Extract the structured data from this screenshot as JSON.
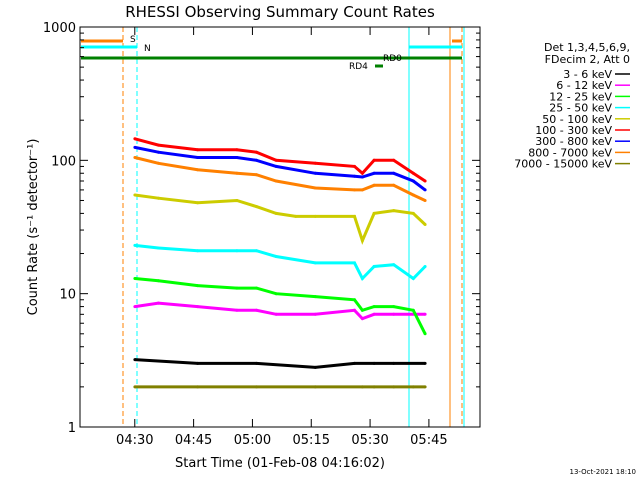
{
  "chart_data": {
    "type": "line",
    "title": "RHESSI Observing Summary Count Rates",
    "xlabel": "Start Time (01-Feb-08 04:16:02)",
    "ylabel": "Count Rate (s⁻¹ detector⁻¹)",
    "y_scale": "log",
    "ylim": [
      1,
      1000
    ],
    "xlim_minutes": [
      0,
      102
    ],
    "x_ticks": [
      "04:30",
      "04:45",
      "05:00",
      "05:15",
      "05:30",
      "05:45"
    ],
    "x_tick_minutes": [
      13.97,
      28.97,
      43.97,
      58.97,
      73.97,
      88.97
    ],
    "y_ticks": [
      "1",
      "10",
      "100",
      "1000"
    ],
    "y_tick_values": [
      1,
      10,
      100,
      1000
    ],
    "legend_header": [
      "Det 1,3,4,5,6,9,",
      "FDecim 2, Att 0"
    ],
    "legend_position": "right",
    "series": [
      {
        "name": "3 - 6 keV",
        "color": "#000000",
        "x": [
          14,
          30,
          45,
          60,
          70,
          75,
          80,
          88
        ],
        "values": [
          3.2,
          3.0,
          3.0,
          2.8,
          3.0,
          3.0,
          3.0,
          3.0
        ]
      },
      {
        "name": "6 - 12 keV",
        "color": "#ff00ff",
        "x": [
          14,
          20,
          30,
          40,
          45,
          50,
          60,
          70,
          72,
          75,
          80,
          88
        ],
        "values": [
          8.0,
          8.5,
          8.0,
          7.5,
          7.5,
          7.0,
          7.0,
          7.5,
          6.5,
          7.0,
          7.0,
          7.0
        ]
      },
      {
        "name": "12 - 25 keV",
        "color": "#00ff00",
        "x": [
          14,
          20,
          30,
          40,
          45,
          50,
          60,
          70,
          72,
          75,
          80,
          85,
          88
        ],
        "values": [
          13.0,
          12.5,
          11.5,
          11.0,
          11.0,
          10.0,
          9.5,
          9.0,
          7.5,
          8.0,
          8.0,
          7.5,
          5.0
        ]
      },
      {
        "name": "25 - 50 keV",
        "color": "#00ffff",
        "x": [
          14,
          20,
          30,
          40,
          45,
          50,
          60,
          70,
          72,
          75,
          80,
          85,
          88
        ],
        "values": [
          23.0,
          22.0,
          21.0,
          21.0,
          21.0,
          19.0,
          17.0,
          17.0,
          13.0,
          16.0,
          16.5,
          13.0,
          16.0
        ]
      },
      {
        "name": "50 - 100 keV",
        "color": "#cccc00",
        "x": [
          14,
          20,
          30,
          40,
          45,
          50,
          55,
          60,
          70,
          72,
          75,
          80,
          85,
          88
        ],
        "values": [
          55,
          52,
          48,
          50,
          45,
          40,
          38,
          38,
          38,
          25,
          40,
          42,
          40,
          33
        ]
      },
      {
        "name": "100 - 300 keV",
        "color": "#ff0000",
        "x": [
          14,
          20,
          30,
          40,
          45,
          50,
          60,
          70,
          72,
          75,
          80,
          85,
          88
        ],
        "values": [
          145,
          130,
          120,
          120,
          115,
          100,
          95,
          90,
          80,
          100,
          100,
          80,
          70
        ]
      },
      {
        "name": "300 - 800 keV",
        "color": "#0000ff",
        "x": [
          14,
          20,
          30,
          40,
          45,
          50,
          60,
          70,
          72,
          75,
          80,
          85,
          88
        ],
        "values": [
          125,
          115,
          105,
          105,
          100,
          90,
          80,
          76,
          75,
          80,
          80,
          70,
          60
        ]
      },
      {
        "name": "800 - 7000 keV",
        "color": "#ff8000",
        "x": [
          14,
          20,
          30,
          40,
          45,
          50,
          60,
          70,
          72,
          75,
          80,
          85,
          88
        ],
        "values": [
          105,
          95,
          85,
          80,
          78,
          70,
          62,
          60,
          60,
          65,
          65,
          55,
          50
        ]
      },
      {
        "name": "7000 - 15000 keV",
        "color": "#808000",
        "x": [
          14,
          30,
          45,
          60,
          72,
          75,
          80,
          85,
          88
        ],
        "values": [
          2.0,
          2.0,
          2.0,
          2.0,
          2.0,
          2.0,
          2.0,
          2.0,
          2.0
        ]
      }
    ],
    "annotations": [
      "S",
      "N",
      "RD0",
      "RD4"
    ]
  },
  "timestamp": "13-Oct-2021 18:10"
}
